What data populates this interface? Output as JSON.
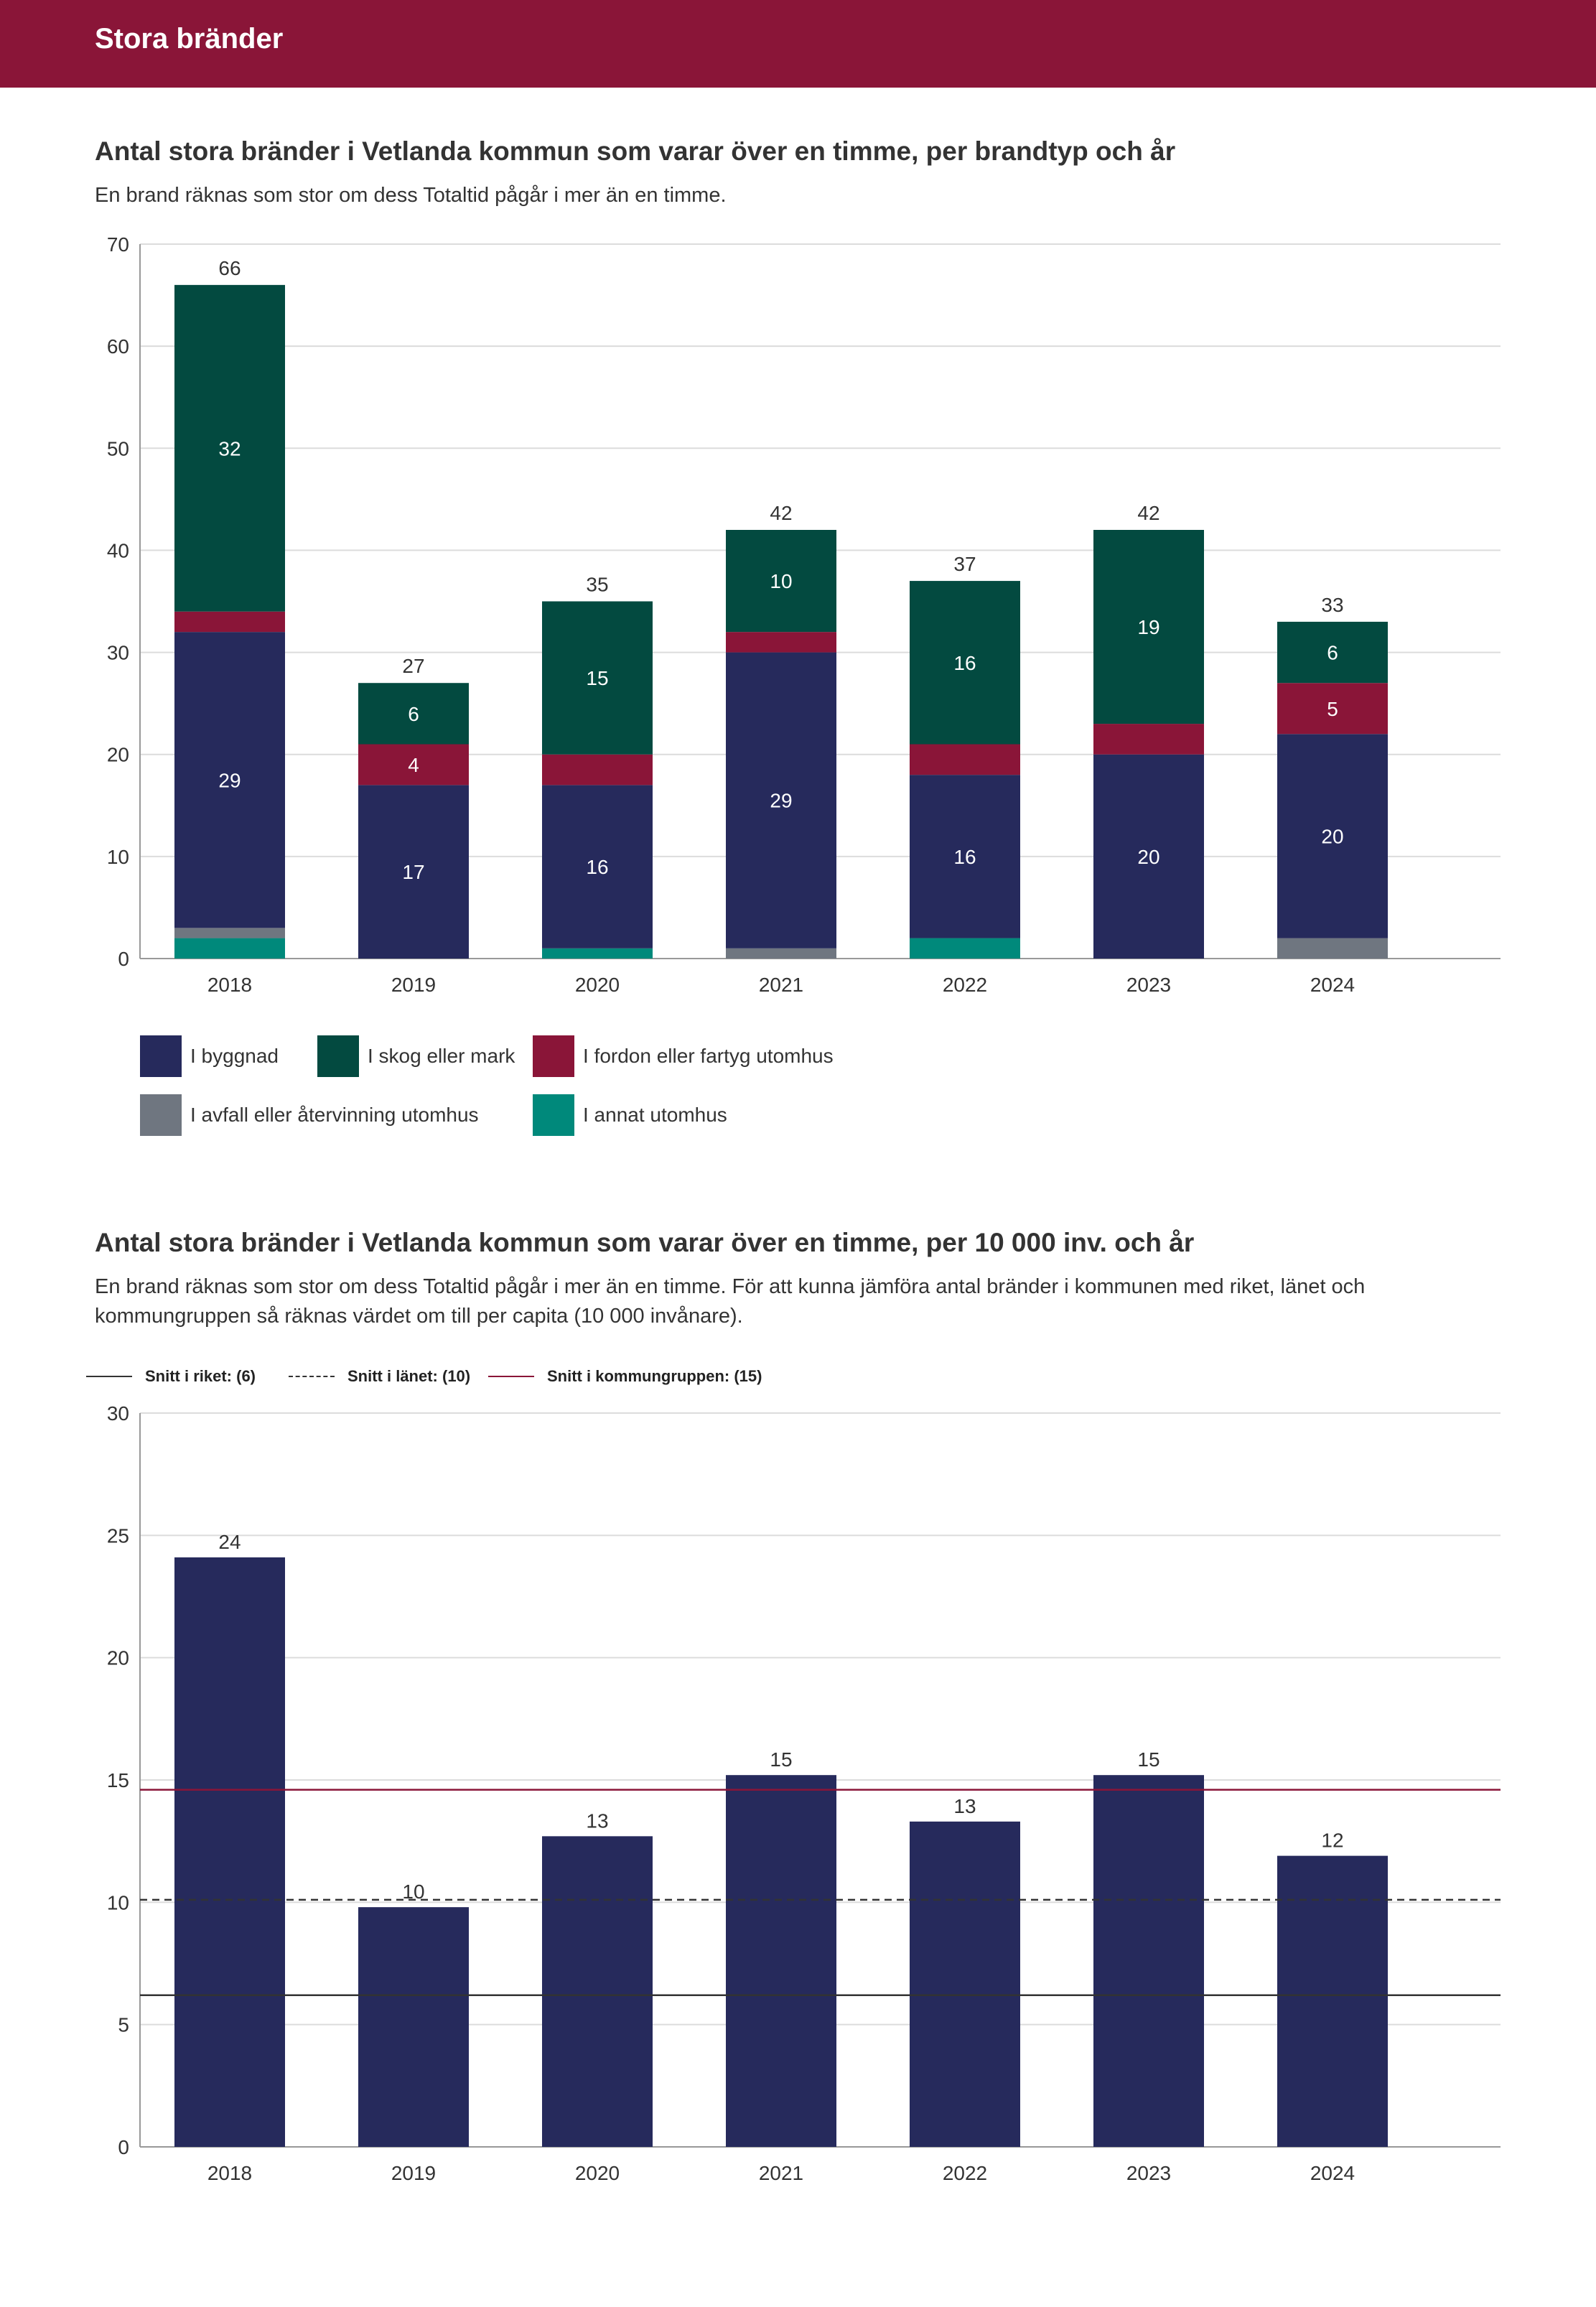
{
  "header": {
    "title": "Stora bränder"
  },
  "section1": {
    "title": "Antal stora bränder i Vetlanda kommun som varar över en timme, per brandtyp och år",
    "subtitle": "En brand räknas som stor om dess Totaltid pågår i mer än en timme."
  },
  "section2": {
    "title": "Antal stora bränder i Vetlanda kommun som varar över en timme, per 10 000 inv. och år",
    "subtitle": "En brand räknas som stor om dess Totaltid pågår i mer än en timme. För att kunna jämföra antal bränder i kommunen med riket, länet och kommungruppen så räknas värdet om till per capita (10 000 invånare)."
  },
  "colors": {
    "byggnad": "#262a5c",
    "skog": "#034a40",
    "fordon": "#8a1538",
    "avfall": "#6f7680",
    "annat": "#00897b",
    "grid": "#dcdcdc",
    "axis": "#999999",
    "kommungrupp": "#8a1538",
    "riket": "#333333",
    "lanet": "#333333"
  },
  "chart_data": [
    {
      "type": "bar",
      "stacked": true,
      "categories": [
        "2018",
        "2019",
        "2020",
        "2021",
        "2022",
        "2023",
        "2024"
      ],
      "ylim": [
        0,
        70
      ],
      "yticks": [
        0,
        10,
        20,
        30,
        40,
        50,
        60,
        70
      ],
      "grid": true,
      "legend_placement": "bottom",
      "totals": [
        66,
        27,
        35,
        42,
        37,
        42,
        33
      ],
      "series": [
        {
          "name": "I annat utomhus",
          "key": "annat",
          "values": [
            2,
            0,
            1,
            0,
            2,
            0,
            0
          ],
          "labels": [
            null,
            null,
            null,
            null,
            null,
            null,
            null
          ]
        },
        {
          "name": "I avfall eller återvinning utomhus",
          "key": "avfall",
          "values": [
            1,
            0,
            0,
            1,
            0,
            0,
            2
          ],
          "labels": [
            null,
            null,
            null,
            null,
            null,
            null,
            null
          ]
        },
        {
          "name": "I byggnad",
          "key": "byggnad",
          "values": [
            29,
            17,
            16,
            29,
            16,
            20,
            20
          ],
          "labels": [
            "29",
            "17",
            "16",
            "29",
            "16",
            "20",
            "20"
          ]
        },
        {
          "name": "I fordon eller fartyg utomhus",
          "key": "fordon",
          "values": [
            2,
            4,
            3,
            2,
            3,
            3,
            5
          ],
          "labels": [
            null,
            "4",
            null,
            null,
            null,
            null,
            "5"
          ]
        },
        {
          "name": "I skog eller mark",
          "key": "skog",
          "values": [
            32,
            6,
            15,
            10,
            16,
            19,
            6
          ],
          "labels": [
            "32",
            "6",
            "15",
            "10",
            "16",
            "19",
            "6"
          ]
        }
      ],
      "legend": [
        {
          "name": "I byggnad",
          "key": "byggnad"
        },
        {
          "name": "I skog eller mark",
          "key": "skog"
        },
        {
          "name": "I fordon eller fartyg utomhus",
          "key": "fordon"
        },
        {
          "name": "I avfall eller återvinning utomhus",
          "key": "avfall"
        },
        {
          "name": "I annat utomhus",
          "key": "annat"
        }
      ]
    },
    {
      "type": "bar",
      "categories": [
        "2018",
        "2019",
        "2020",
        "2021",
        "2022",
        "2023",
        "2024"
      ],
      "values": [
        24.1,
        9.8,
        12.7,
        15.2,
        13.3,
        15.2,
        11.9
      ],
      "data_labels": [
        "24",
        "10",
        "13",
        "15",
        "13",
        "15",
        "12"
      ],
      "ylim": [
        0,
        30
      ],
      "yticks": [
        0,
        5,
        10,
        15,
        20,
        25,
        30
      ],
      "grid": true,
      "legend_placement": "top-left",
      "reference_lines": [
        {
          "label": "Snitt i riket: (6)",
          "value": 6.2,
          "style": "solid",
          "key": "riket"
        },
        {
          "label": "Snitt i länet: (10)",
          "value": 10.1,
          "style": "dashed",
          "key": "lanet"
        },
        {
          "label": "Snitt i kommungruppen: (15)",
          "value": 14.6,
          "style": "solid",
          "key": "kommungrupp"
        }
      ]
    }
  ]
}
